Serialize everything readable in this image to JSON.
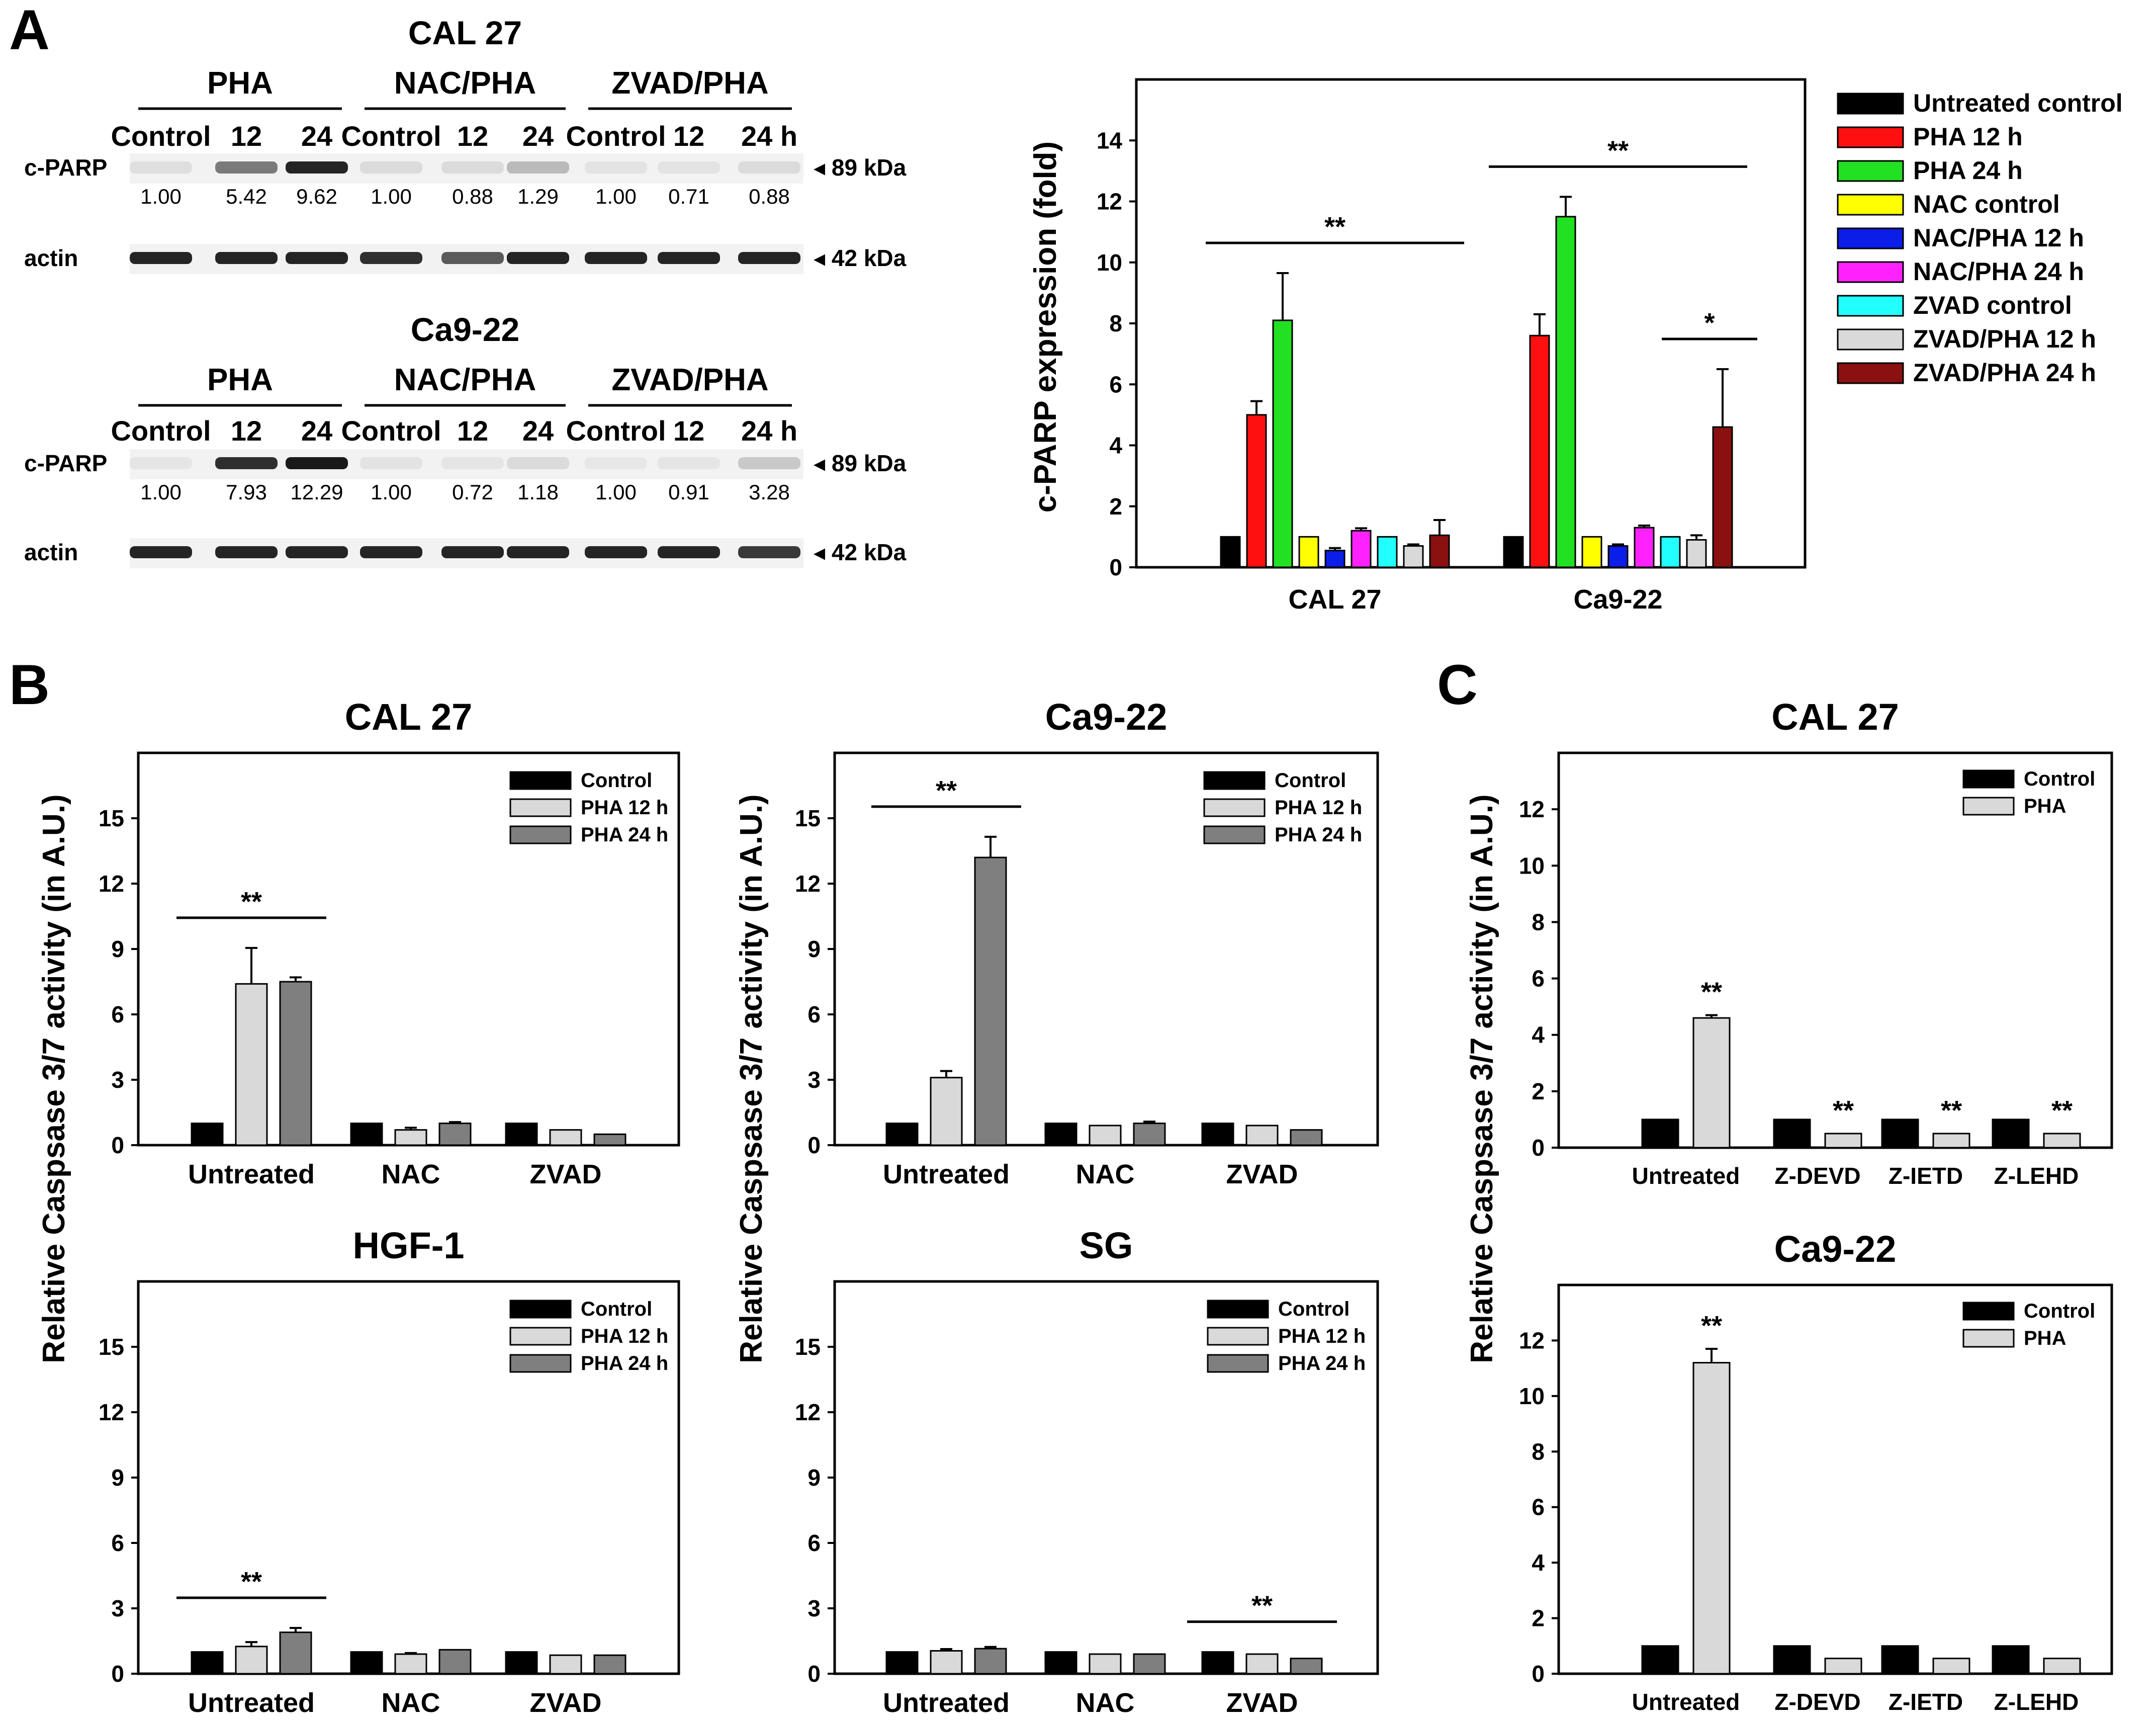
{
  "panel_labels": {
    "a": "A",
    "b": "B",
    "c": "C"
  },
  "colors": {
    "black": "#000000",
    "red": "#ff1010",
    "green": "#22e022",
    "yellow": "#ffff00",
    "blue": "#0a1ee8",
    "magenta": "#ff22ff",
    "cyan": "#22ffff",
    "lightgray": "#d9d9d9",
    "darkred": "#8b1010",
    "gray": "#7f7f7f",
    "band": "#1a1a1a"
  },
  "blots": [
    {
      "cell_line": "CAL 27",
      "groups": [
        "PHA",
        "NAC/PHA",
        "ZVAD/PHA"
      ],
      "lanes": [
        "Control",
        "12",
        "24",
        "Control",
        "12",
        "24",
        "Control",
        "12",
        "24 h"
      ],
      "rows": [
        {
          "label": "c-PARP",
          "marker": "◂ 89 kDa",
          "intensities": [
            0.08,
            0.55,
            0.95,
            0.1,
            0.1,
            0.25,
            0.06,
            0.06,
            0.1
          ],
          "values": [
            "1.00",
            "5.42",
            "9.62",
            "1.00",
            "0.88",
            "1.29",
            "1.00",
            "0.71",
            "0.88"
          ]
        },
        {
          "label": "actin",
          "marker": "◂ 42 kDa",
          "intensities": [
            0.95,
            0.95,
            0.95,
            0.9,
            0.7,
            0.95,
            0.95,
            0.95,
            0.95
          ]
        }
      ]
    },
    {
      "cell_line": "Ca9-22",
      "groups": [
        "PHA",
        "NAC/PHA",
        "ZVAD/PHA"
      ],
      "lanes": [
        "Control",
        "12",
        "24",
        "Control",
        "12",
        "24",
        "Control",
        "12",
        "24 h"
      ],
      "rows": [
        {
          "label": "c-PARP",
          "marker": "◂ 89 kDa",
          "intensities": [
            0.05,
            0.9,
            1.0,
            0.06,
            0.05,
            0.1,
            0.04,
            0.05,
            0.18
          ],
          "values": [
            "1.00",
            "7.93",
            "12.29",
            "1.00",
            "0.72",
            "1.18",
            "1.00",
            "0.91",
            "3.28"
          ]
        },
        {
          "label": "actin",
          "marker": "◂ 42 kDa",
          "intensities": [
            0.95,
            0.95,
            0.95,
            0.95,
            0.95,
            0.95,
            0.95,
            0.95,
            0.85
          ]
        }
      ]
    }
  ],
  "chart_data": [
    {
      "id": "parp",
      "type": "bar",
      "title": "",
      "xlabel": "",
      "ylabel": "c-PARP expression (fold)",
      "ylim": [
        0,
        16
      ],
      "yticks": [
        0,
        2,
        4,
        6,
        8,
        10,
        12,
        14
      ],
      "categories": [
        "CAL 27",
        "Ca9-22"
      ],
      "series": [
        {
          "name": "Untreated control",
          "color": "#000000",
          "values": [
            1.0,
            1.0
          ],
          "errors": [
            0,
            0
          ]
        },
        {
          "name": "PHA 12 h",
          "color": "#ff1010",
          "values": [
            5.0,
            7.6
          ],
          "errors": [
            0.45,
            0.7
          ]
        },
        {
          "name": "PHA 24 h",
          "color": "#22e022",
          "values": [
            8.1,
            11.5
          ],
          "errors": [
            1.55,
            0.65
          ]
        },
        {
          "name": "NAC control",
          "color": "#ffff00",
          "values": [
            1.0,
            1.0
          ],
          "errors": [
            0,
            0
          ]
        },
        {
          "name": "NAC/PHA 12 h",
          "color": "#0a1ee8",
          "values": [
            0.55,
            0.7
          ],
          "errors": [
            0.08,
            0.05
          ]
        },
        {
          "name": "NAC/PHA 24 h",
          "color": "#ff22ff",
          "values": [
            1.2,
            1.3
          ],
          "errors": [
            0.08,
            0.07
          ]
        },
        {
          "name": "ZVAD control",
          "color": "#22ffff",
          "values": [
            1.0,
            1.0
          ],
          "errors": [
            0,
            0
          ]
        },
        {
          "name": "ZVAD/PHA 12 h",
          "color": "#d9d9d9",
          "values": [
            0.7,
            0.9
          ],
          "errors": [
            0.05,
            0.15
          ]
        },
        {
          "name": "ZVAD/PHA 24 h",
          "color": "#8b1010",
          "values": [
            1.05,
            4.6
          ],
          "errors": [
            0.5,
            1.9
          ]
        }
      ],
      "significance": [
        {
          "label": "**",
          "group": 0
        },
        {
          "label": "**",
          "group": 1
        },
        {
          "label": "*",
          "group": 1,
          "sub": "zvad"
        }
      ]
    },
    {
      "id": "b1",
      "type": "bar",
      "title": "CAL 27",
      "ylabel": "Relative Caspsase 3/7 activity (in A.U.)",
      "ylim": [
        0,
        18
      ],
      "yticks": [
        0,
        3,
        6,
        9,
        12,
        15
      ],
      "categories": [
        "Untreated",
        "NAC",
        "ZVAD"
      ],
      "series": [
        {
          "name": "Control",
          "color": "#000000",
          "values": [
            1.0,
            1.0,
            1.0
          ],
          "errors": [
            0,
            0,
            0
          ]
        },
        {
          "name": "PHA 12 h",
          "color": "#d9d9d9",
          "values": [
            7.4,
            0.7,
            0.7
          ],
          "errors": [
            1.65,
            0.1,
            0
          ]
        },
        {
          "name": "PHA 24 h",
          "color": "#7f7f7f",
          "values": [
            7.5,
            1.0,
            0.5
          ],
          "errors": [
            0.2,
            0.06,
            0
          ]
        }
      ],
      "significance": [
        {
          "label": "**",
          "group": 0
        }
      ]
    },
    {
      "id": "b2",
      "type": "bar",
      "title": "Ca9-22",
      "ylabel": "Relative Caspsase 3/7 activity (in A.U.)",
      "ylim": [
        0,
        18
      ],
      "yticks": [
        0,
        3,
        6,
        9,
        12,
        15
      ],
      "categories": [
        "Untreated",
        "NAC",
        "ZVAD"
      ],
      "series": [
        {
          "name": "Control",
          "color": "#000000",
          "values": [
            1.0,
            1.0,
            1.0
          ],
          "errors": [
            0,
            0,
            0
          ]
        },
        {
          "name": "PHA 12 h",
          "color": "#d9d9d9",
          "values": [
            3.1,
            0.9,
            0.9
          ],
          "errors": [
            0.3,
            0,
            0
          ]
        },
        {
          "name": "PHA 24 h",
          "color": "#7f7f7f",
          "values": [
            13.2,
            1.0,
            0.7
          ],
          "errors": [
            0.95,
            0.08,
            0
          ]
        }
      ],
      "significance": [
        {
          "label": "**",
          "group": 0
        }
      ]
    },
    {
      "id": "b3",
      "type": "bar",
      "title": "HGF-1",
      "ylabel": "Relative Caspsase 3/7 activity (in A.U.)",
      "ylim": [
        0,
        18
      ],
      "yticks": [
        0,
        3,
        6,
        9,
        12,
        15
      ],
      "categories": [
        "Untreated",
        "NAC",
        "ZVAD"
      ],
      "series": [
        {
          "name": "Control",
          "color": "#000000",
          "values": [
            1.0,
            1.0,
            1.0
          ],
          "errors": [
            0,
            0,
            0
          ]
        },
        {
          "name": "PHA 12 h",
          "color": "#d9d9d9",
          "values": [
            1.25,
            0.9,
            0.85
          ],
          "errors": [
            0.2,
            0.05,
            0
          ]
        },
        {
          "name": "PHA 24 h",
          "color": "#7f7f7f",
          "values": [
            1.9,
            1.1,
            0.85
          ],
          "errors": [
            0.2,
            0,
            0
          ]
        }
      ],
      "significance": [
        {
          "label": "**",
          "group": 0
        }
      ]
    },
    {
      "id": "b4",
      "type": "bar",
      "title": "SG",
      "ylabel": "Relative Caspsase 3/7 activity (in A.U.)",
      "ylim": [
        0,
        18
      ],
      "yticks": [
        0,
        3,
        6,
        9,
        12,
        15
      ],
      "categories": [
        "Untreated",
        "NAC",
        "ZVAD"
      ],
      "series": [
        {
          "name": "Control",
          "color": "#000000",
          "values": [
            1.0,
            1.0,
            1.0
          ],
          "errors": [
            0,
            0,
            0
          ]
        },
        {
          "name": "PHA 12 h",
          "color": "#d9d9d9",
          "values": [
            1.05,
            0.9,
            0.9
          ],
          "errors": [
            0.08,
            0,
            0
          ]
        },
        {
          "name": "PHA 24 h",
          "color": "#7f7f7f",
          "values": [
            1.15,
            0.9,
            0.7
          ],
          "errors": [
            0.08,
            0,
            0
          ]
        }
      ],
      "significance": [
        {
          "label": "**",
          "group": 2
        }
      ]
    },
    {
      "id": "c1",
      "type": "bar",
      "title": "CAL 27",
      "ylabel": "Relative Caspsase 3/7 activity (in A.U.)",
      "ylim": [
        0,
        14
      ],
      "yticks": [
        0,
        2,
        4,
        6,
        8,
        10,
        12
      ],
      "categories": [
        "Untreated",
        "Z-DEVD",
        "Z-IETD",
        "Z-LEHD"
      ],
      "series": [
        {
          "name": "Control",
          "color": "#000000",
          "values": [
            1.0,
            1.0,
            1.0,
            1.0
          ],
          "errors": [
            0,
            0,
            0,
            0
          ]
        },
        {
          "name": "PHA",
          "color": "#d9d9d9",
          "values": [
            4.6,
            0.5,
            0.5,
            0.5
          ],
          "errors": [
            0.1,
            0,
            0,
            0
          ]
        }
      ],
      "significance": [
        {
          "label": "**",
          "bar": [
            0,
            1
          ]
        },
        {
          "label": "**",
          "bar": [
            1,
            1
          ]
        },
        {
          "label": "**",
          "bar": [
            2,
            1
          ]
        },
        {
          "label": "**",
          "bar": [
            3,
            1
          ]
        }
      ]
    },
    {
      "id": "c2",
      "type": "bar",
      "title": "Ca9-22",
      "ylabel": "Relative Caspsase 3/7 activity (in A.U.)",
      "ylim": [
        0,
        14
      ],
      "yticks": [
        0,
        2,
        4,
        6,
        8,
        10,
        12
      ],
      "categories": [
        "Untreated",
        "Z-DEVD",
        "Z-IETD",
        "Z-LEHD"
      ],
      "series": [
        {
          "name": "Control",
          "color": "#000000",
          "values": [
            1.0,
            1.0,
            1.0,
            1.0
          ],
          "errors": [
            0,
            0,
            0,
            0
          ]
        },
        {
          "name": "PHA",
          "color": "#d9d9d9",
          "values": [
            11.2,
            0.55,
            0.55,
            0.55
          ],
          "errors": [
            0.5,
            0,
            0,
            0
          ]
        }
      ],
      "significance": [
        {
          "label": "**",
          "bar": [
            0,
            1
          ]
        }
      ]
    }
  ]
}
